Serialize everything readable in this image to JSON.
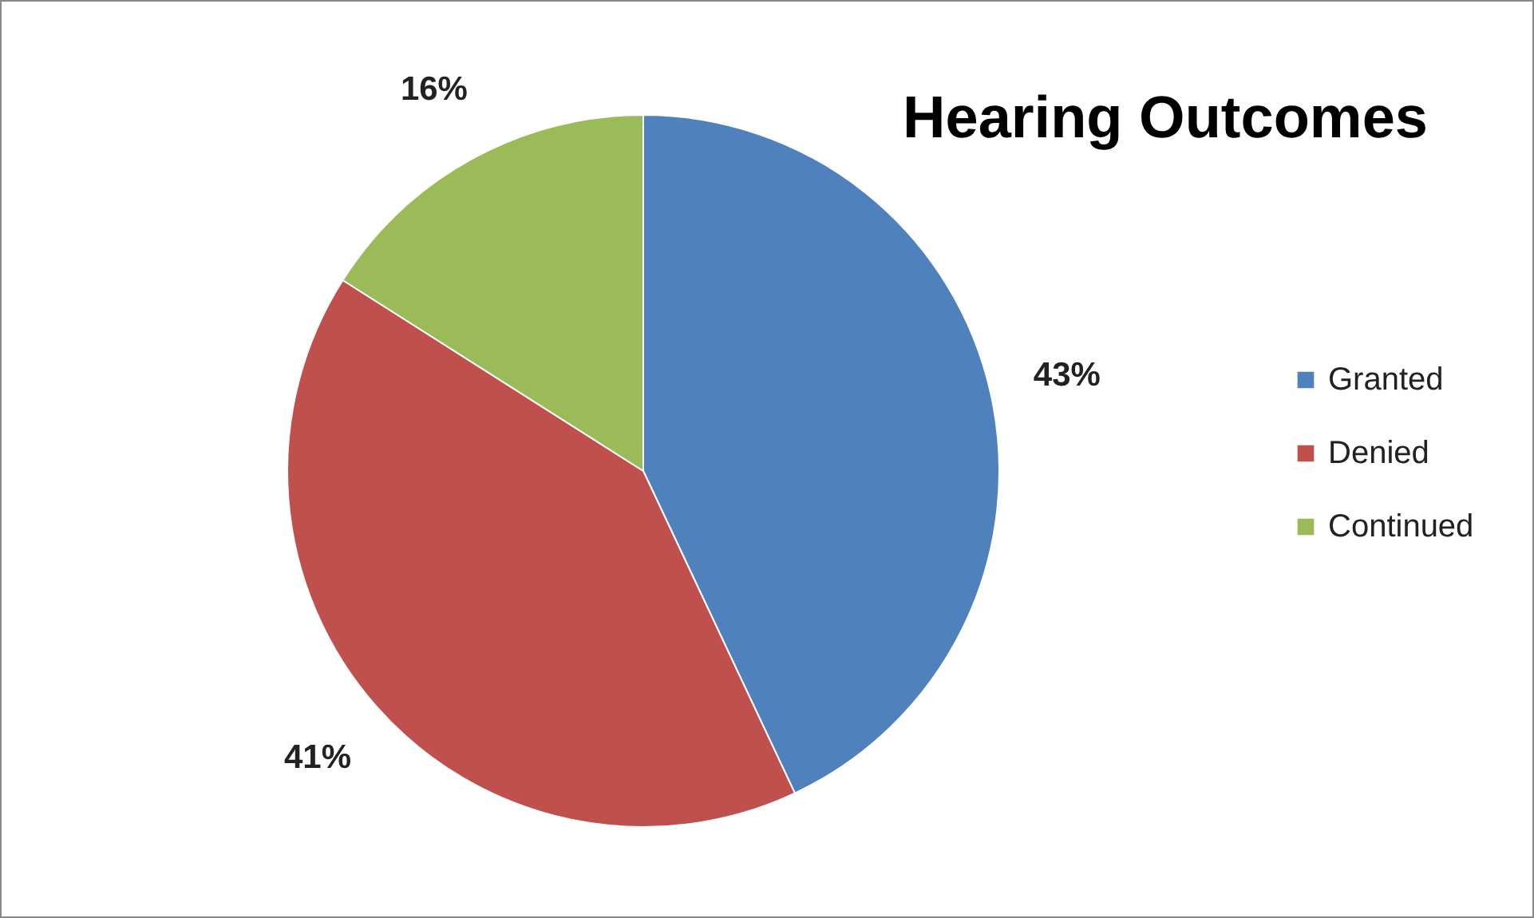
{
  "chart_data": {
    "type": "pie",
    "title": "Hearing Outcomes",
    "categories": [
      "Granted",
      "Denied",
      "Continued"
    ],
    "values": [
      43,
      41,
      16
    ],
    "colors": [
      "#4f81bd",
      "#c0504d",
      "#9bbb59"
    ],
    "value_labels": [
      "43%",
      "41%",
      "16%"
    ],
    "legend": "right"
  }
}
